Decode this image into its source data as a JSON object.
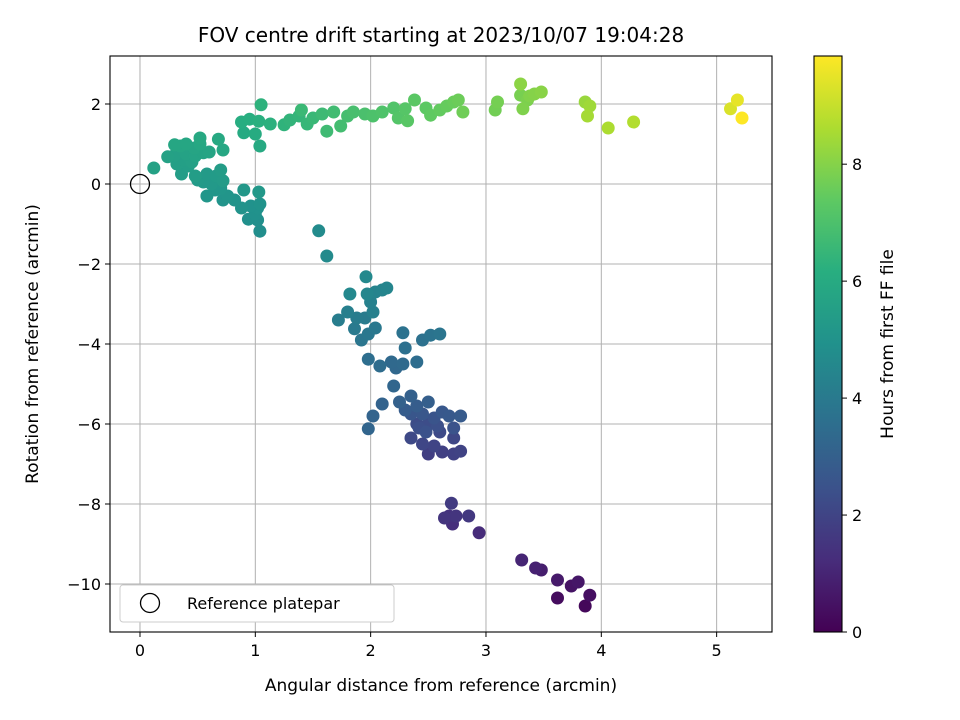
{
  "chart_data": {
    "type": "scatter",
    "title": "FOV centre drift starting at 2023/10/07 19:04:28",
    "xlabel": "Angular distance from reference (arcmin)",
    "ylabel": "Rotation from reference (arcmin)",
    "xlim": [
      -0.26,
      5.48
    ],
    "ylim": [
      -11.2,
      3.2
    ],
    "xticks": [
      0,
      1,
      2,
      3,
      4,
      5
    ],
    "yticks": [
      -10,
      -8,
      -6,
      -4,
      -2,
      0,
      2
    ],
    "grid": true,
    "colormap": "viridis",
    "colorbar": {
      "label": "Hours from first FF file",
      "range": [
        0,
        9.85
      ],
      "ticks": [
        0,
        2,
        4,
        6,
        8
      ]
    },
    "legend": {
      "placement": "lower-left",
      "entries": [
        "Reference platepar"
      ]
    },
    "reference_point": {
      "x": 0,
      "y": 0,
      "label": "Reference platepar"
    },
    "points": [
      [
        3.86,
        -10.55,
        0.2
      ],
      [
        3.62,
        -10.35,
        0.3
      ],
      [
        3.9,
        -10.28,
        0.4
      ],
      [
        3.74,
        -10.05,
        0.5
      ],
      [
        3.8,
        -9.95,
        0.6
      ],
      [
        3.62,
        -9.9,
        0.7
      ],
      [
        3.48,
        -9.65,
        0.8
      ],
      [
        3.43,
        -9.6,
        0.9
      ],
      [
        3.31,
        -9.4,
        1.0
      ],
      [
        2.94,
        -8.72,
        1.2
      ],
      [
        2.71,
        -8.5,
        1.3
      ],
      [
        2.68,
        -8.3,
        1.4
      ],
      [
        2.74,
        -8.3,
        1.5
      ],
      [
        2.64,
        -8.35,
        1.5
      ],
      [
        2.85,
        -8.3,
        1.6
      ],
      [
        2.7,
        -7.98,
        1.7
      ],
      [
        2.5,
        -6.75,
        1.8
      ],
      [
        2.62,
        -6.7,
        1.85
      ],
      [
        2.72,
        -6.75,
        1.9
      ],
      [
        2.78,
        -6.68,
        1.95
      ],
      [
        2.55,
        -6.55,
        2.0
      ],
      [
        2.45,
        -6.5,
        2.05
      ],
      [
        2.72,
        -6.35,
        2.1
      ],
      [
        2.35,
        -6.35,
        2.15
      ],
      [
        2.6,
        -6.2,
        2.2
      ],
      [
        2.4,
        -6.0,
        2.25
      ],
      [
        2.5,
        -6.0,
        2.3
      ],
      [
        2.42,
        -6.1,
        2.35
      ],
      [
        2.58,
        -6.05,
        2.4
      ],
      [
        2.48,
        -6.2,
        2.45
      ],
      [
        2.72,
        -6.1,
        2.5
      ],
      [
        2.55,
        -5.85,
        2.55
      ],
      [
        2.35,
        -5.75,
        2.6
      ],
      [
        2.45,
        -5.75,
        2.65
      ],
      [
        2.62,
        -5.7,
        2.7
      ],
      [
        2.68,
        -5.8,
        2.75
      ],
      [
        2.78,
        -5.8,
        2.8
      ],
      [
        2.3,
        -5.65,
        2.85
      ],
      [
        2.4,
        -5.55,
        2.9
      ],
      [
        2.5,
        -5.45,
        2.95
      ],
      [
        2.35,
        -5.3,
        3.0
      ],
      [
        2.25,
        -5.45,
        3.05
      ],
      [
        2.1,
        -5.5,
        3.1
      ],
      [
        2.02,
        -5.8,
        3.15
      ],
      [
        1.98,
        -6.12,
        3.2
      ],
      [
        2.2,
        -5.05,
        3.25
      ],
      [
        2.22,
        -4.6,
        3.3
      ],
      [
        2.18,
        -4.45,
        3.35
      ],
      [
        2.28,
        -4.5,
        3.4
      ],
      [
        2.08,
        -4.55,
        3.45
      ],
      [
        2.4,
        -4.45,
        3.5
      ],
      [
        1.98,
        -4.38,
        3.55
      ],
      [
        2.3,
        -4.1,
        3.6
      ],
      [
        2.45,
        -3.9,
        3.65
      ],
      [
        2.28,
        -3.72,
        3.7
      ],
      [
        2.52,
        -3.78,
        3.75
      ],
      [
        2.6,
        -3.75,
        3.8
      ],
      [
        1.92,
        -3.9,
        3.85
      ],
      [
        1.98,
        -3.75,
        3.9
      ],
      [
        2.04,
        -3.6,
        3.95
      ],
      [
        1.86,
        -3.62,
        4.0
      ],
      [
        1.95,
        -3.35,
        4.05
      ],
      [
        1.88,
        -3.35,
        4.1
      ],
      [
        1.72,
        -3.4,
        4.15
      ],
      [
        1.8,
        -3.2,
        4.2
      ],
      [
        2.02,
        -3.2,
        4.25
      ],
      [
        2.0,
        -2.95,
        4.3
      ],
      [
        2.04,
        -2.7,
        4.35
      ],
      [
        2.1,
        -2.65,
        4.4
      ],
      [
        2.14,
        -2.6,
        4.45
      ],
      [
        1.97,
        -2.75,
        4.5
      ],
      [
        1.82,
        -2.75,
        4.55
      ],
      [
        1.96,
        -2.32,
        4.6
      ],
      [
        1.62,
        -1.8,
        4.65
      ],
      [
        1.55,
        -1.17,
        4.7
      ],
      [
        1.04,
        -1.18,
        4.8
      ],
      [
        1.02,
        -0.9,
        4.85
      ],
      [
        0.94,
        -0.88,
        4.9
      ],
      [
        1.0,
        -0.75,
        4.92
      ],
      [
        1.02,
        -0.6,
        4.95
      ],
      [
        0.96,
        -0.55,
        4.97
      ],
      [
        1.04,
        -0.5,
        5.0
      ],
      [
        0.88,
        -0.6,
        5.02
      ],
      [
        0.82,
        -0.4,
        5.05
      ],
      [
        0.72,
        -0.4,
        5.07
      ],
      [
        0.76,
        -0.3,
        5.1
      ],
      [
        0.65,
        -0.15,
        5.12
      ],
      [
        0.58,
        -0.3,
        5.15
      ],
      [
        0.7,
        -0.1,
        5.17
      ],
      [
        0.9,
        -0.15,
        5.2
      ],
      [
        1.03,
        -0.2,
        5.22
      ],
      [
        0.62,
        0.0,
        5.25
      ],
      [
        0.55,
        0.05,
        5.27
      ],
      [
        0.5,
        0.1,
        5.3
      ],
      [
        0.58,
        0.25,
        5.32
      ],
      [
        0.66,
        0.2,
        5.35
      ],
      [
        0.72,
        0.08,
        5.37
      ],
      [
        0.7,
        0.35,
        5.4
      ],
      [
        0.48,
        0.2,
        5.42
      ],
      [
        0.36,
        0.25,
        5.45
      ],
      [
        0.42,
        0.45,
        5.47
      ],
      [
        0.32,
        0.5,
        5.5
      ],
      [
        0.38,
        0.6,
        5.52
      ],
      [
        0.45,
        0.55,
        5.55
      ],
      [
        0.3,
        0.72,
        5.57
      ],
      [
        0.24,
        0.68,
        5.6
      ],
      [
        0.12,
        0.4,
        5.62
      ],
      [
        0.4,
        0.75,
        5.65
      ],
      [
        0.48,
        0.7,
        5.67
      ],
      [
        0.55,
        0.78,
        5.7
      ],
      [
        0.6,
        0.8,
        5.72
      ],
      [
        0.47,
        0.9,
        5.75
      ],
      [
        0.35,
        0.95,
        5.77
      ],
      [
        0.3,
        0.98,
        5.8
      ],
      [
        0.4,
        1.0,
        5.82
      ],
      [
        0.52,
        1.0,
        5.85
      ],
      [
        0.72,
        0.85,
        5.87
      ],
      [
        0.68,
        1.12,
        5.9
      ],
      [
        0.52,
        1.15,
        5.92
      ],
      [
        1.04,
        0.95,
        5.95
      ],
      [
        0.9,
        1.28,
        6.0
      ],
      [
        1.0,
        1.25,
        6.05
      ],
      [
        0.88,
        1.55,
        6.1
      ],
      [
        0.95,
        1.62,
        6.15
      ],
      [
        1.03,
        1.57,
        6.2
      ],
      [
        1.13,
        1.5,
        6.25
      ],
      [
        1.05,
        1.98,
        6.3
      ],
      [
        1.25,
        1.48,
        6.35
      ],
      [
        1.3,
        1.6,
        6.4
      ],
      [
        1.38,
        1.7,
        6.45
      ],
      [
        1.45,
        1.5,
        6.5
      ],
      [
        1.5,
        1.65,
        6.55
      ],
      [
        1.4,
        1.85,
        6.6
      ],
      [
        1.58,
        1.75,
        6.65
      ],
      [
        1.62,
        1.32,
        6.7
      ],
      [
        1.68,
        1.8,
        6.75
      ],
      [
        1.74,
        1.45,
        6.8
      ],
      [
        1.8,
        1.7,
        6.85
      ],
      [
        1.85,
        1.8,
        6.9
      ],
      [
        1.95,
        1.75,
        6.95
      ],
      [
        2.02,
        1.7,
        7.0
      ],
      [
        2.1,
        1.8,
        7.05
      ],
      [
        2.2,
        1.9,
        7.1
      ],
      [
        2.24,
        1.65,
        7.15
      ],
      [
        2.3,
        1.88,
        7.2
      ],
      [
        2.32,
        1.58,
        7.25
      ],
      [
        2.38,
        2.1,
        7.3
      ],
      [
        2.48,
        1.9,
        7.35
      ],
      [
        2.52,
        1.72,
        7.4
      ],
      [
        2.6,
        1.85,
        7.45
      ],
      [
        2.66,
        1.95,
        7.5
      ],
      [
        2.72,
        2.05,
        7.55
      ],
      [
        2.76,
        2.1,
        7.6
      ],
      [
        2.8,
        1.8,
        7.65
      ],
      [
        3.08,
        1.85,
        7.7
      ],
      [
        3.1,
        2.05,
        7.75
      ],
      [
        3.3,
        2.22,
        7.8
      ],
      [
        3.36,
        2.1,
        7.85
      ],
      [
        3.32,
        1.88,
        7.9
      ],
      [
        3.38,
        2.2,
        7.95
      ],
      [
        3.42,
        2.25,
        8.0
      ],
      [
        3.48,
        2.3,
        8.05
      ],
      [
        3.3,
        2.5,
        8.1
      ],
      [
        3.86,
        2.05,
        8.3
      ],
      [
        3.9,
        1.95,
        8.4
      ],
      [
        3.88,
        1.7,
        8.5
      ],
      [
        4.06,
        1.4,
        8.6
      ],
      [
        4.28,
        1.55,
        8.7
      ],
      [
        5.12,
        1.88,
        9.3
      ],
      [
        5.18,
        2.1,
        9.5
      ],
      [
        5.22,
        1.65,
        9.85
      ]
    ]
  }
}
